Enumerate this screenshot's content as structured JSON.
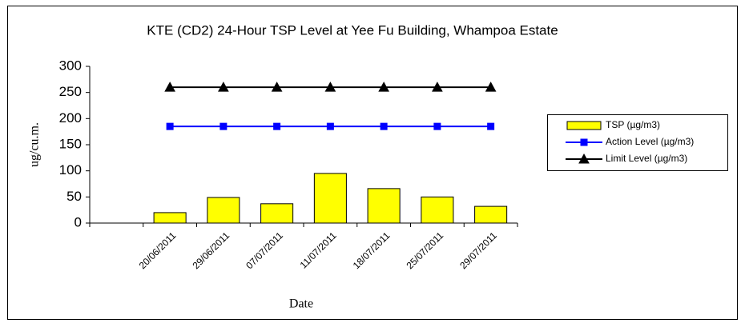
{
  "chart_data": {
    "type": "bar",
    "title": "KTE  (CD2) 24-Hour TSP Level at Yee Fu Building, Whampoa Estate",
    "x_label": "Date",
    "y_label": "ug/cu.m.",
    "categories": [
      null,
      "20/06/2011",
      "29/06/2011",
      "07/07/2011",
      "11/07/2011",
      "18/07/2011",
      "25/07/2011",
      "29/07/2011"
    ],
    "series": [
      {
        "name": "TSP (µg/m3)",
        "type": "bar",
        "color": "#ffff00",
        "values": [
          null,
          20,
          49,
          37,
          95,
          66,
          50,
          32
        ]
      },
      {
        "name": "Action Level (µg/m3)",
        "type": "line",
        "marker": "square",
        "color": "#0000ff",
        "values": [
          null,
          185,
          185,
          185,
          185,
          185,
          185,
          185
        ]
      },
      {
        "name": "Limit Level (µg/m3)",
        "type": "line",
        "marker": "triangle",
        "color": "#000000",
        "values": [
          null,
          260,
          260,
          260,
          260,
          260,
          260,
          260
        ]
      }
    ],
    "ylim": [
      0,
      300
    ],
    "yticks": [
      0,
      50,
      100,
      150,
      200,
      250,
      300
    ],
    "legend": "right"
  }
}
